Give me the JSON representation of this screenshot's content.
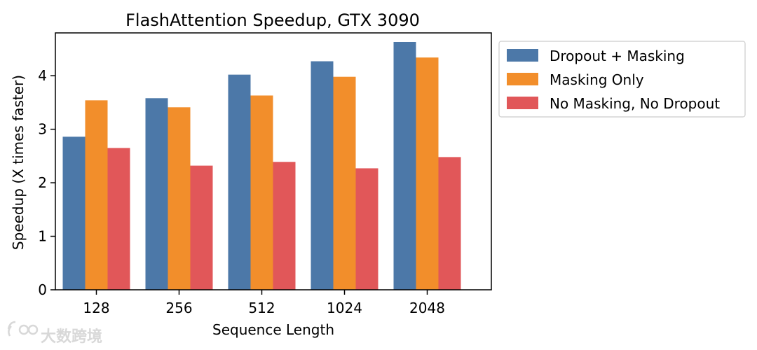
{
  "chart_data": {
    "type": "bar",
    "title": "FlashAttention Speedup, GTX 3090",
    "xlabel": "Sequence Length",
    "ylabel": "Speedup (X times faster)",
    "categories": [
      "128",
      "256",
      "512",
      "1024",
      "2048"
    ],
    "ylim": [
      0,
      4.8
    ],
    "yticks": [
      "0",
      "1",
      "2",
      "3",
      "4"
    ],
    "grid": false,
    "legend_position": "outside-right-top",
    "series": [
      {
        "name": "Dropout + Masking",
        "color": "#4c78a8",
        "values": [
          2.86,
          3.58,
          4.02,
          4.27,
          4.63
        ]
      },
      {
        "name": "Masking Only",
        "color": "#f28e2b",
        "values": [
          3.54,
          3.41,
          3.63,
          3.98,
          4.34
        ]
      },
      {
        "name": "No Masking, No Dropout",
        "color": "#e15759",
        "values": [
          2.65,
          2.32,
          2.39,
          2.27,
          2.48
        ]
      }
    ]
  },
  "watermark": {
    "text": "大数跨境"
  }
}
